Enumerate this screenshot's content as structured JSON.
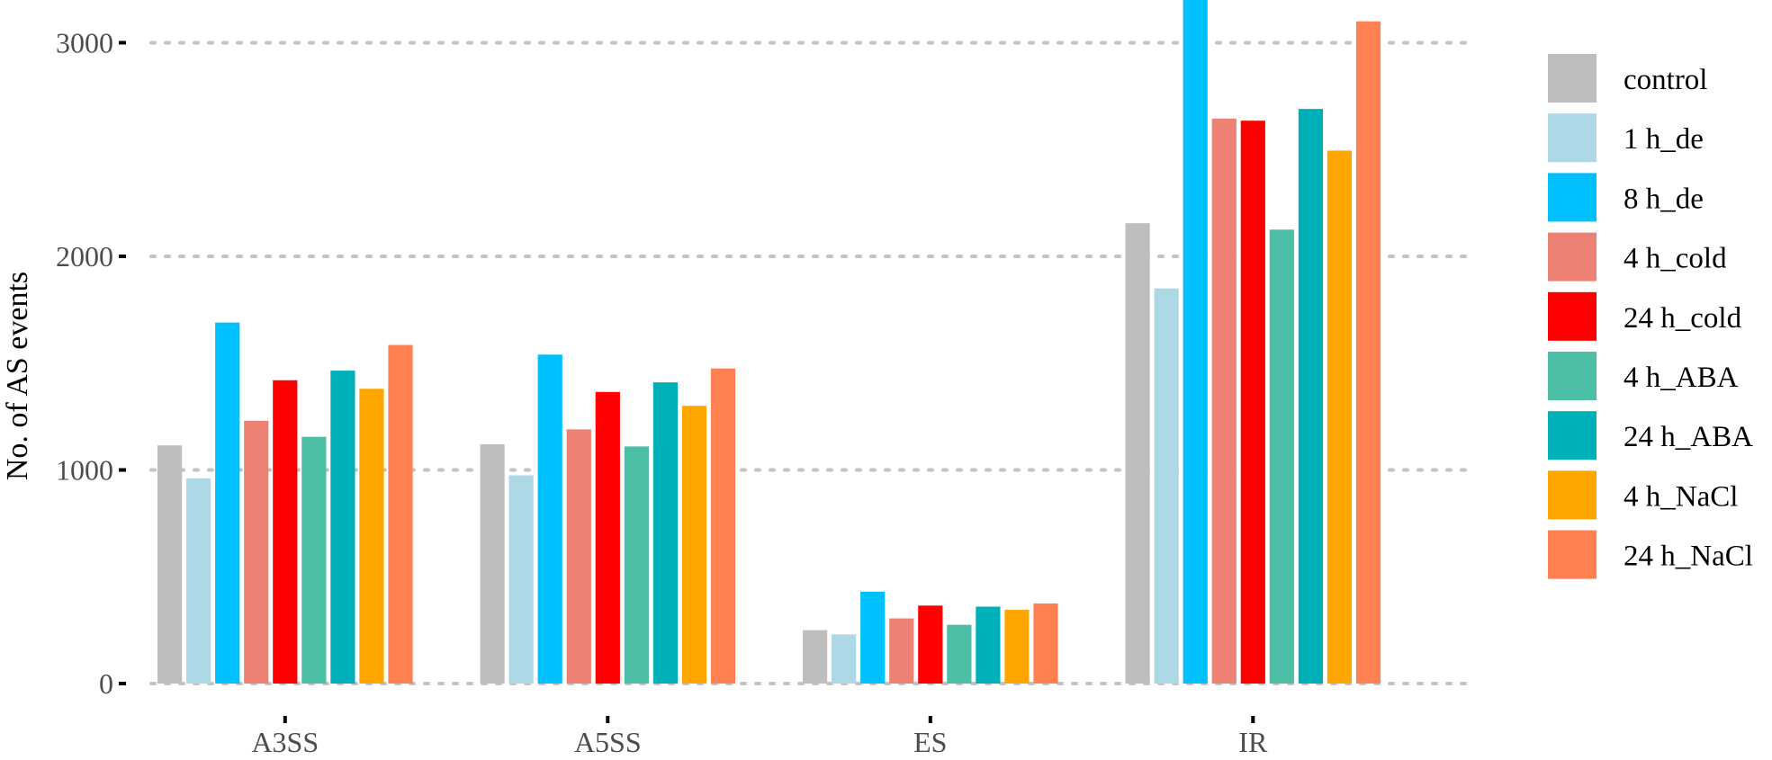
{
  "chart_data": {
    "type": "bar",
    "title": "",
    "xlabel": "",
    "ylabel": "No. of AS events",
    "ylim": [
      0,
      3200
    ],
    "yticks": [
      0,
      1000,
      2000,
      3000
    ],
    "grid": true,
    "legend_position": "right",
    "categories": [
      "A3SS",
      "A5SS",
      "ES",
      "IR"
    ],
    "series": [
      {
        "name": "control",
        "color": "#bebebe",
        "values": [
          1115,
          1120,
          250,
          2155
        ]
      },
      {
        "name": "1 h_de",
        "color": "#add8e6",
        "values": [
          960,
          975,
          230,
          1850
        ]
      },
      {
        "name": "8 h_de",
        "color": "#00bfff",
        "values": [
          1690,
          1540,
          430,
          3200
        ]
      },
      {
        "name": "4 h_cold",
        "color": "#ed8174",
        "values": [
          1230,
          1190,
          305,
          2645
        ]
      },
      {
        "name": "24 h_cold",
        "color": "#ff0000",
        "values": [
          1420,
          1365,
          365,
          2635
        ]
      },
      {
        "name": "4 h_ABA",
        "color": "#4dbfa7",
        "values": [
          1155,
          1110,
          275,
          2125
        ]
      },
      {
        "name": "24 h_ABA",
        "color": "#00b0b8",
        "values": [
          1465,
          1410,
          360,
          2690
        ]
      },
      {
        "name": "4 h_NaCl",
        "color": "#ffa500",
        "values": [
          1380,
          1300,
          345,
          2495
        ]
      },
      {
        "name": "24 h_NaCl",
        "color": "#ff8050",
        "values": [
          1585,
          1475,
          375,
          3100
        ]
      }
    ]
  }
}
